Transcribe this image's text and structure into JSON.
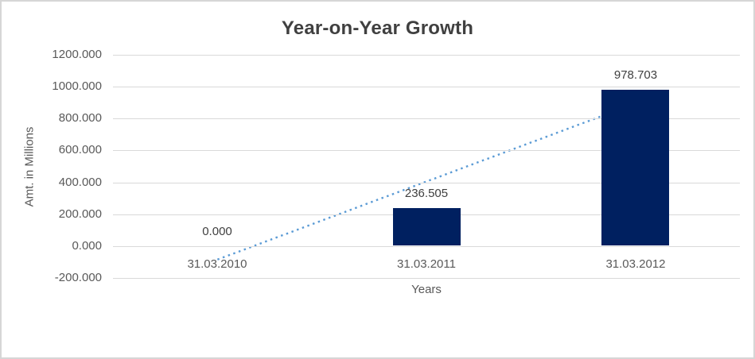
{
  "chart_data": {
    "type": "bar",
    "title": "Year-on-Year Growth",
    "xlabel": "Years",
    "ylabel": "Amt. in Millions",
    "categories": [
      "31.03.2010",
      "31.03.2011",
      "31.03.2012"
    ],
    "values": [
      0,
      236.505,
      978.703
    ],
    "data_labels": [
      "0.000",
      "236.505",
      "978.703"
    ],
    "ylim": [
      -200,
      1200
    ],
    "ytick_step": 200,
    "ytick_labels": [
      "1200.000",
      "1000.000",
      "800.000",
      "600.000",
      "400.000",
      "200.000",
      "0.000",
      "-200.000"
    ],
    "grid": true,
    "legend": "none",
    "colors": {
      "bar": "#002060",
      "trendline": "#5b9bd5",
      "gridline": "#d9d9d9",
      "title_text": "#404040",
      "axis_text": "#595959",
      "data_label_text": "#404040",
      "frame_border": "#d6d6d6"
    },
    "trendline": {
      "type": "linear",
      "style": "dotted"
    }
  }
}
